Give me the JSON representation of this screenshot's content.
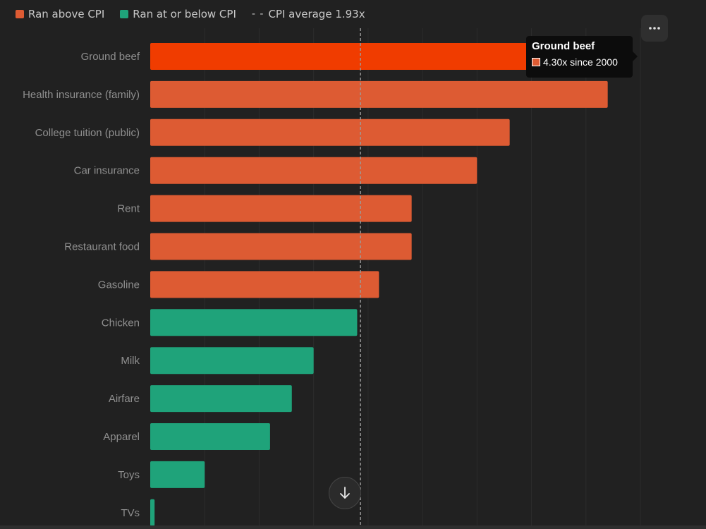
{
  "legend": {
    "above_label": "Ran above CPI",
    "below_label": "Ran at or below CPI",
    "cpi_label": "CPI average 1.93x"
  },
  "colors": {
    "above": "#dd5b33",
    "highlight": "#f03c00",
    "below": "#1fa37a",
    "background": "#212121",
    "label": "#8f8f8f"
  },
  "tooltip": {
    "title": "Ground beef",
    "value_text": "4.30x since 2000"
  },
  "icons": {
    "more": "more-horizontal-icon",
    "scroll": "arrow-down-icon"
  },
  "chart_data": {
    "type": "bar",
    "orientation": "horizontal",
    "categories": [
      "Ground beef",
      "Health insurance (family)",
      "College tuition (public)",
      "Car insurance",
      "Rent",
      "Restaurant food",
      "Gasoline",
      "Chicken",
      "Milk",
      "Airfare",
      "Apparel",
      "Toys",
      "TVs"
    ],
    "values": [
      4.3,
      4.2,
      3.3,
      3.0,
      2.4,
      2.4,
      2.1,
      1.9,
      1.5,
      1.3,
      1.1,
      0.5,
      0.04
    ],
    "groups": [
      "above",
      "above",
      "above",
      "above",
      "above",
      "above",
      "above",
      "below",
      "below",
      "below",
      "below",
      "below",
      "below"
    ],
    "highlighted": "Ground beef",
    "reference_line": 1.93,
    "xlim": [
      0,
      4.5
    ],
    "grid": true
  }
}
